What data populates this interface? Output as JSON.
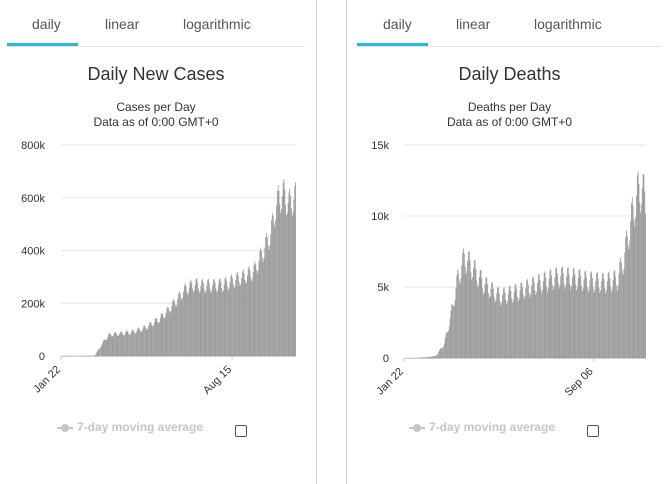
{
  "chart_data": [
    {
      "type": "bar",
      "tabs": [
        "daily",
        "linear",
        "logarithmic"
      ],
      "active_tab": "daily",
      "title": "Daily New Cases",
      "subtitle": "Cases per Day",
      "subtitle2": "Data as of 0:00 GMT+0",
      "xlabel": "",
      "ylabel": "",
      "x_start": "Jan 22",
      "x_ticks": [
        {
          "label": "Jan 22",
          "day": 0
        },
        {
          "label": "Aug 15",
          "day": 206
        }
      ],
      "ylim": [
        0,
        800000
      ],
      "y_ticks": [
        {
          "v": 0,
          "label": "0"
        },
        {
          "v": 200000,
          "label": "200k"
        },
        {
          "v": 400000,
          "label": "400k"
        },
        {
          "v": 600000,
          "label": "600k"
        },
        {
          "v": 800000,
          "label": "800k"
        }
      ],
      "grid": true,
      "bar_color": "#999999",
      "trend_anchors": [
        [
          0,
          0
        ],
        [
          9,
          1000
        ],
        [
          12,
          0
        ],
        [
          40,
          1000
        ],
        [
          45,
          25000
        ],
        [
          52,
          60000
        ],
        [
          58,
          80000
        ],
        [
          66,
          83000
        ],
        [
          85,
          90000
        ],
        [
          100,
          105000
        ],
        [
          118,
          140000
        ],
        [
          128,
          170000
        ],
        [
          140,
          215000
        ],
        [
          150,
          255000
        ],
        [
          160,
          270000
        ],
        [
          172,
          265000
        ],
        [
          195,
          270000
        ],
        [
          220,
          300000
        ],
        [
          232,
          320000
        ],
        [
          240,
          375000
        ],
        [
          252,
          460000
        ],
        [
          258,
          560000
        ],
        [
          262,
          600000
        ],
        [
          268,
          610000
        ],
        [
          274,
          575000
        ],
        [
          282,
          600000
        ]
      ],
      "weekly_amplitude": 0.1,
      "legend": {
        "label": "7-day moving average",
        "checked": false
      }
    },
    {
      "type": "bar",
      "tabs": [
        "daily",
        "linear",
        "logarithmic"
      ],
      "active_tab": "daily",
      "title": "Daily Deaths",
      "subtitle": "Deaths per Day",
      "subtitle2": "Data as of 0:00 GMT+0",
      "xlabel": "",
      "ylabel": "",
      "x_start": "Jan 22",
      "x_ticks": [
        {
          "label": "Jan 22",
          "day": 0
        },
        {
          "label": "Sep 06",
          "day": 228
        }
      ],
      "ylim": [
        0,
        15000
      ],
      "y_ticks": [
        {
          "v": 0,
          "label": "0"
        },
        {
          "v": 5000,
          "label": "5k"
        },
        {
          "v": 10000,
          "label": "10k"
        },
        {
          "v": 15000,
          "label": "15k"
        }
      ],
      "grid": true,
      "bar_color": "#999999",
      "trend_anchors": [
        [
          0,
          0
        ],
        [
          12,
          10
        ],
        [
          28,
          60
        ],
        [
          38,
          150
        ],
        [
          48,
          1000
        ],
        [
          56,
          3000
        ],
        [
          64,
          5500
        ],
        [
          72,
          7000
        ],
        [
          80,
          6500
        ],
        [
          95,
          5200
        ],
        [
          115,
          4300
        ],
        [
          140,
          4700
        ],
        [
          160,
          5200
        ],
        [
          185,
          5700
        ],
        [
          205,
          5600
        ],
        [
          220,
          5400
        ],
        [
          240,
          5300
        ],
        [
          256,
          5500
        ],
        [
          264,
          7000
        ],
        [
          272,
          9500
        ],
        [
          280,
          11500
        ],
        [
          285,
          12000
        ],
        [
          290,
          11000
        ]
      ],
      "weekly_amplitude": 0.14,
      "legend": {
        "label": "7-day moving average",
        "checked": false
      }
    }
  ]
}
